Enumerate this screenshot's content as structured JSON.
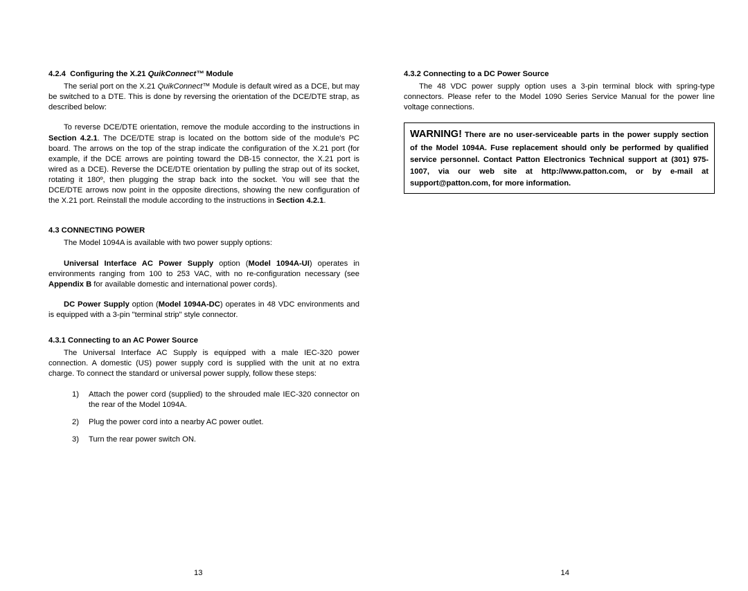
{
  "left": {
    "h424_num": "4.2.4",
    "h424_prefix": "Configuring the X.21 ",
    "h424_quik": "QuikConnect™",
    "h424_suffix": " Module",
    "p1_a": "The serial port on the X.21 ",
    "p1_quik": "QuikConnect™",
    "p1_b": " Module is default wired as a DCE, but may be switched to a DTE.  This is done by reversing the orientation of the DCE/DTE strap, as described below:",
    "p2_a": "To reverse DCE/DTE orientation, remove the module according to the instructions in ",
    "p2_sec": "Section 4.2.1",
    "p2_b": ".  The DCE/DTE strap is located on the bottom side of the module's PC board.  The arrows on the top of the strap indicate the configuration of the X.21 port (for example, if the DCE arrows are pointing toward the DB-15 connector, the X.21 port is wired as a DCE).  Reverse the DCE/DTE orientation by pulling the strap out of its socket, rotating it 180º, then plugging the strap back into the socket.  You will see that the DCE/DTE arrows now point in the opposite directions, showing the new configuration of the X.21 port.  Reinstall the module according to the instructions in ",
    "p2_sec2": "Section 4.2.1",
    "p2_c": ".",
    "h43": "4.3  CONNECTING POWER",
    "p3": "The Model 1094A is available with two power supply options:",
    "p4_a": "Universal Interface AC Power Supply",
    "p4_b": " option (",
    "p4_c": "Model 1094A-UI",
    "p4_d": ") operates in environments ranging from 100 to 253 VAC, with no re-configuration necessary (see ",
    "p4_e": "Appendix B",
    "p4_f": " for available domestic and international power cords).",
    "p5_a": "DC Power Supply",
    "p5_b": " option (",
    "p5_c": "Model 1094A-DC",
    "p5_d": ") operates in 48 VDC environments and is equipped with a 3-pin \"terminal strip\" style connector.",
    "h431": "4.3.1   Connecting to an AC Power Source",
    "p6": "The Universal Interface AC Supply is equipped with a male IEC-320 power connection.  A domestic (US)  power supply cord is supplied with the unit at no extra charge.  To connect the standard or universal power supply, follow these steps:",
    "li1n": "1)",
    "li1": "Attach the power cord (supplied) to the shrouded male IEC-320 connector on the rear of the Model 1094A.",
    "li2n": "2)",
    "li2": "Plug the power cord into a nearby AC power outlet.",
    "li3n": "3)",
    "li3": "Turn the rear power switch ON.",
    "pagenum": "13"
  },
  "right": {
    "h432": "4.3.2   Connecting to a DC Power Source",
    "p1": "The 48 VDC power supply option uses a 3-pin terminal block with spring-type connectors.  Please refer to the Model 1090 Series Service Manual for the power line voltage connections.",
    "warn_title": "WARNING!",
    "warn_body": "There are no user-serviceable parts in the power supply section of the Model 1094A.  Fuse replacement should only be performed   by qualified service personnel.  Contact Patton Electronics Technical support at (301) 975-1007, via our web site at http://www.patton.com, or by e-mail at support@patton.com, for more information.",
    "pagenum": "14"
  }
}
